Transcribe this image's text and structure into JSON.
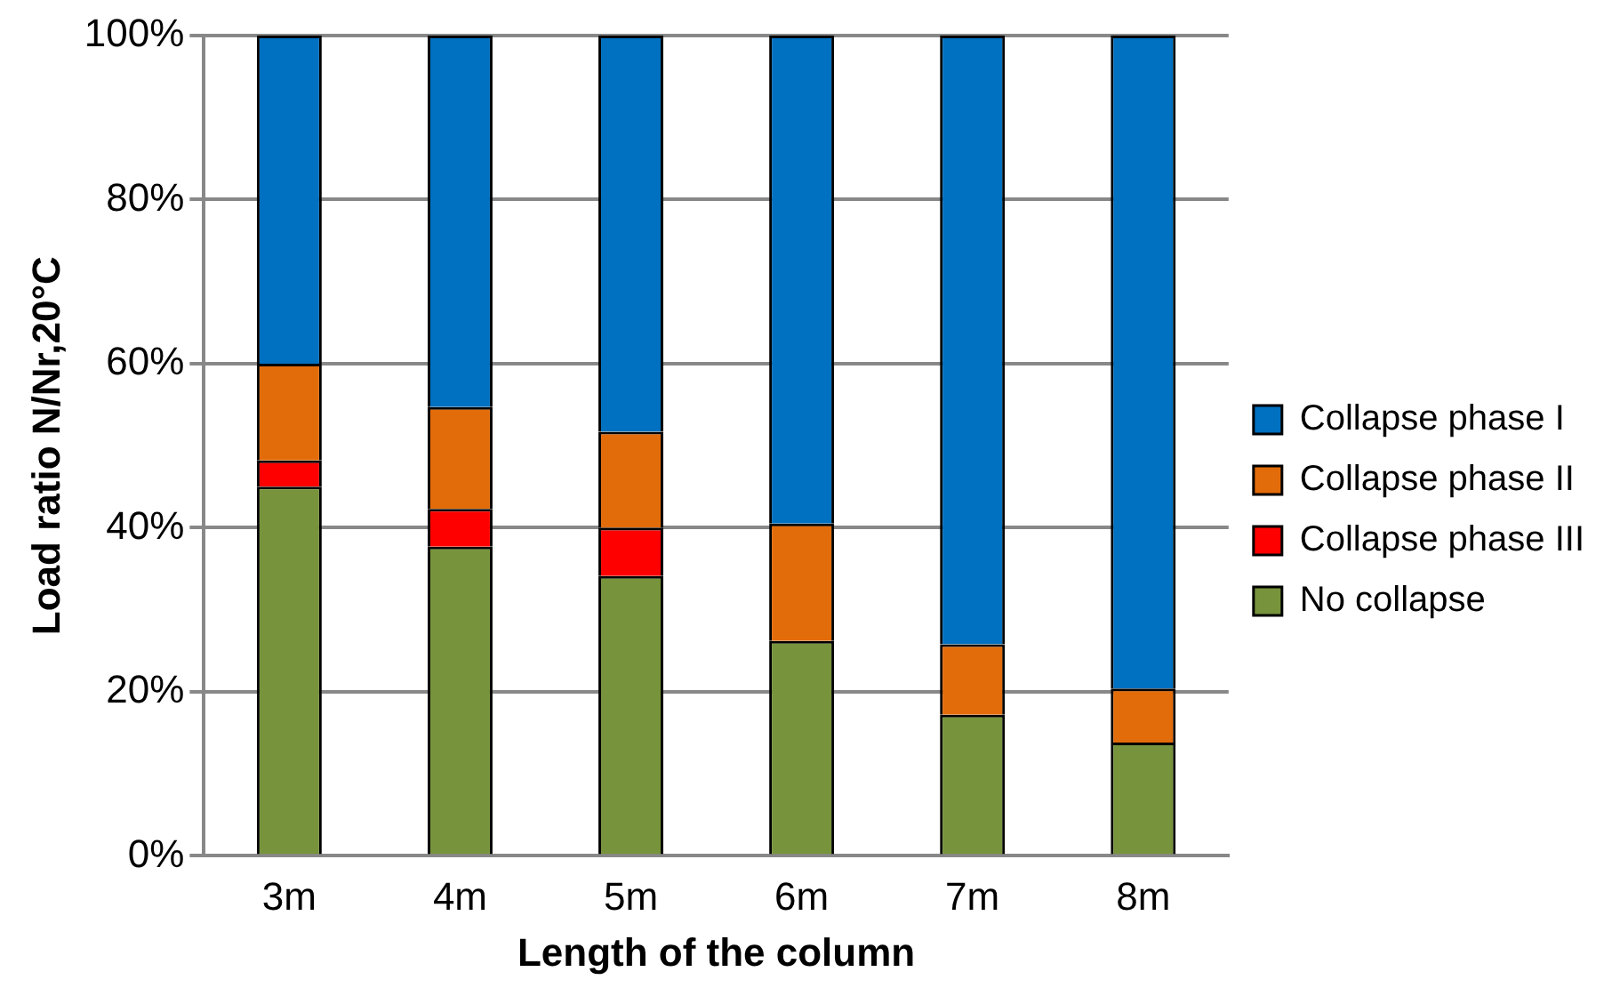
{
  "chart_data": {
    "type": "bar",
    "stacked": true,
    "xlabel": "Length of the column",
    "ylabel": "Load ratio N/Nr,20°C",
    "categories": [
      "3m",
      "4m",
      "5m",
      "6m",
      "7m",
      "8m"
    ],
    "series": [
      {
        "name": "No collapse",
        "color": "#77933c",
        "values": [
          45,
          37.7,
          34.1,
          26.2,
          17.2,
          13.8
        ]
      },
      {
        "name": "Collapse phase III",
        "color": "#ff0000",
        "values": [
          3.2,
          4.6,
          5.9,
          0,
          0,
          0
        ]
      },
      {
        "name": "Collapse phase II",
        "color": "#e36c0a",
        "values": [
          11.8,
          12.4,
          11.7,
          14.3,
          8.6,
          6.6
        ]
      },
      {
        "name": "Collapse phase I",
        "color": "#0070c0",
        "values": [
          40,
          45.3,
          48.3,
          59.5,
          74.2,
          79.6
        ]
      }
    ],
    "ylim": [
      0,
      100
    ],
    "yticks": [
      {
        "value": 0,
        "label": "0%"
      },
      {
        "value": 20,
        "label": "20%"
      },
      {
        "value": 40,
        "label": "40%"
      },
      {
        "value": 60,
        "label": "60%"
      },
      {
        "value": 80,
        "label": "80%"
      },
      {
        "value": 100,
        "label": "100%"
      }
    ],
    "grid": "y",
    "legend": "right"
  }
}
